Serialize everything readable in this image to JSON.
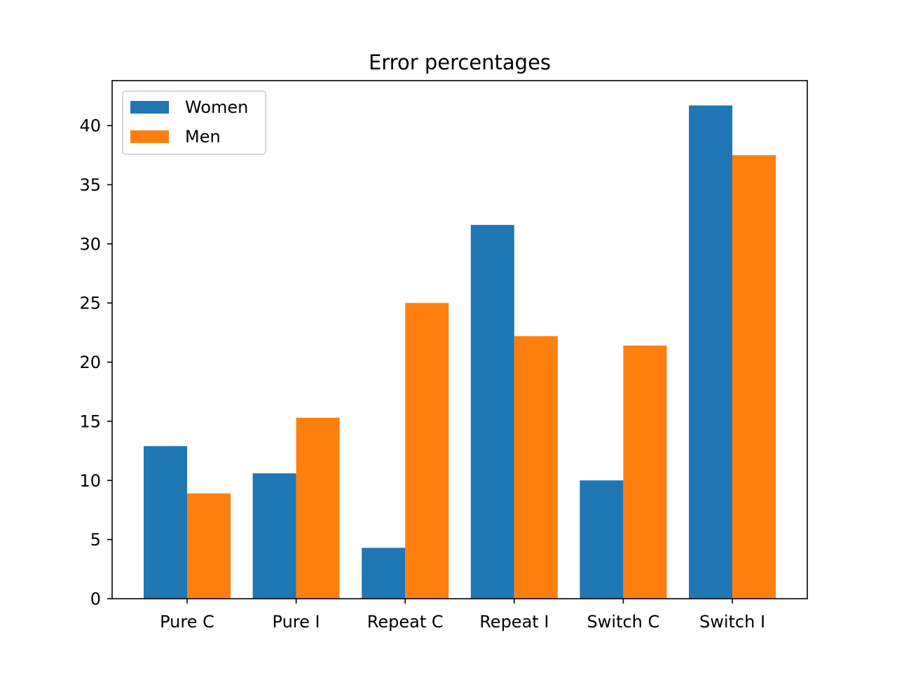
{
  "chart_data": {
    "type": "bar",
    "title": "Error percentages",
    "xlabel": "",
    "ylabel": "",
    "categories": [
      "Pure C",
      "Pure I",
      "Repeat C",
      "Repeat I",
      "Switch C",
      "Switch I"
    ],
    "series": [
      {
        "name": "Women",
        "color": "#1f77b4",
        "values": [
          12.9,
          10.6,
          4.3,
          31.6,
          10.0,
          41.7
        ]
      },
      {
        "name": "Men",
        "color": "#ff7f0e",
        "values": [
          8.9,
          15.3,
          25.0,
          22.2,
          21.4,
          37.5
        ]
      }
    ],
    "ylim": [
      0,
      43.8
    ],
    "yticks": [
      0,
      5,
      10,
      15,
      20,
      25,
      30,
      35,
      40
    ],
    "grid": false,
    "legend_position": "top-left"
  }
}
